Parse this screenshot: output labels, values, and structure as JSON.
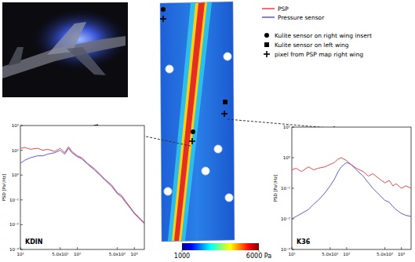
{
  "figure": {
    "legend_markers": [
      {
        "marker": "circle",
        "label": "Kulite sensor on right wing insert"
      },
      {
        "marker": "square",
        "label": "Kulite sensor on left wing"
      },
      {
        "marker": "plus",
        "label": "pixel from PSP map right wing"
      }
    ],
    "colorbar": {
      "range": [
        1000,
        6000
      ],
      "ticks": [
        1000,
        {
          "value": 6000,
          "label": "6000 Pa"
        }
      ]
    }
  },
  "chart_data": [
    {
      "type": "line",
      "title": "KDIN",
      "y_label": "PSD [Pa²/Hz]",
      "log": true,
      "grid": false,
      "x": [
        10,
        12,
        15,
        20,
        25,
        30,
        40,
        50,
        60,
        70,
        80,
        100,
        120,
        150,
        200,
        250,
        300,
        400,
        500,
        600,
        700,
        800,
        1000,
        1200,
        1500
      ],
      "xlim": [
        10,
        1500
      ],
      "xticks": [
        {
          "value": 10,
          "label": "10¹"
        },
        {
          "value": 50,
          "label": "5.0x10¹"
        },
        {
          "value": 100,
          "label": "10²"
        },
        {
          "value": 500,
          "label": "5.0x10²"
        },
        {
          "value": 1000,
          "label": "10³"
        }
      ],
      "ylim": [
        0.001,
        100
      ],
      "yticks": [
        {
          "value": 0.001,
          "label": "10⁻³"
        },
        {
          "value": 0.01,
          "label": "10⁻²"
        },
        {
          "value": 0.1,
          "label": "10⁻¹"
        },
        {
          "value": 1,
          "label": "10⁰"
        },
        {
          "value": 10,
          "label": "10¹"
        },
        {
          "value": 100,
          "label": "10²"
        }
      ],
      "series": [
        {
          "name": "PSP",
          "color": "#e8333a",
          "values": [
            12,
            13,
            11,
            12,
            10,
            11,
            9,
            12,
            8,
            14,
            9,
            6,
            5,
            3,
            1.8,
            1.1,
            0.7,
            0.4,
            0.2,
            0.15,
            0.09,
            0.06,
            0.03,
            0.02,
            0.012
          ]
        },
        {
          "name": "Pressure sensor",
          "color": "#4a4ad8",
          "values": [
            3,
            4,
            5,
            6,
            6,
            7,
            8,
            10,
            7,
            12,
            8,
            5.5,
            4.5,
            2.8,
            1.6,
            1.0,
            0.65,
            0.35,
            0.18,
            0.13,
            0.08,
            0.055,
            0.028,
            0.018,
            0.011
          ]
        }
      ]
    },
    {
      "type": "line",
      "title": "K36",
      "y_label": "PSD [Pa²/Hz]",
      "log": true,
      "grid": false,
      "x": [
        10,
        12,
        15,
        20,
        25,
        30,
        40,
        50,
        60,
        70,
        80,
        100,
        120,
        150,
        200,
        250,
        300,
        400,
        500,
        600,
        700,
        800,
        1000,
        1200,
        1500
      ],
      "xlim": [
        10,
        1500
      ],
      "xticks": [
        {
          "value": 10,
          "label": "10¹"
        },
        {
          "value": 50,
          "label": "5.0x10¹"
        },
        {
          "value": 100,
          "label": "10²"
        },
        {
          "value": 500,
          "label": "5.0x10²"
        },
        {
          "value": 1000,
          "label": "10³"
        }
      ],
      "ylim": [
        0.001,
        10
      ],
      "yticks": [
        {
          "value": 0.001,
          "label": "10⁻³"
        },
        {
          "value": 0.01,
          "label": "10⁻²"
        },
        {
          "value": 0.1,
          "label": "10⁻¹"
        },
        {
          "value": 1,
          "label": "10⁰"
        },
        {
          "value": 10,
          "label": "10¹"
        }
      ],
      "series": [
        {
          "color": "#e8333a",
          "values": [
            0.4,
            0.45,
            0.35,
            0.5,
            0.4,
            0.45,
            0.5,
            0.6,
            0.7,
            0.9,
            1.0,
            0.8,
            0.6,
            0.45,
            0.35,
            0.25,
            0.3,
            0.2,
            0.15,
            0.18,
            0.12,
            0.14,
            0.1,
            0.12,
            0.1
          ]
        },
        {
          "color": "#4a4ad8",
          "values": [
            0.01,
            0.012,
            0.015,
            0.02,
            0.03,
            0.04,
            0.07,
            0.12,
            0.2,
            0.35,
            0.5,
            0.7,
            0.6,
            0.4,
            0.25,
            0.15,
            0.1,
            0.06,
            0.04,
            0.035,
            0.025,
            0.02,
            0.015,
            0.013,
            0.012
          ]
        }
      ]
    }
  ]
}
